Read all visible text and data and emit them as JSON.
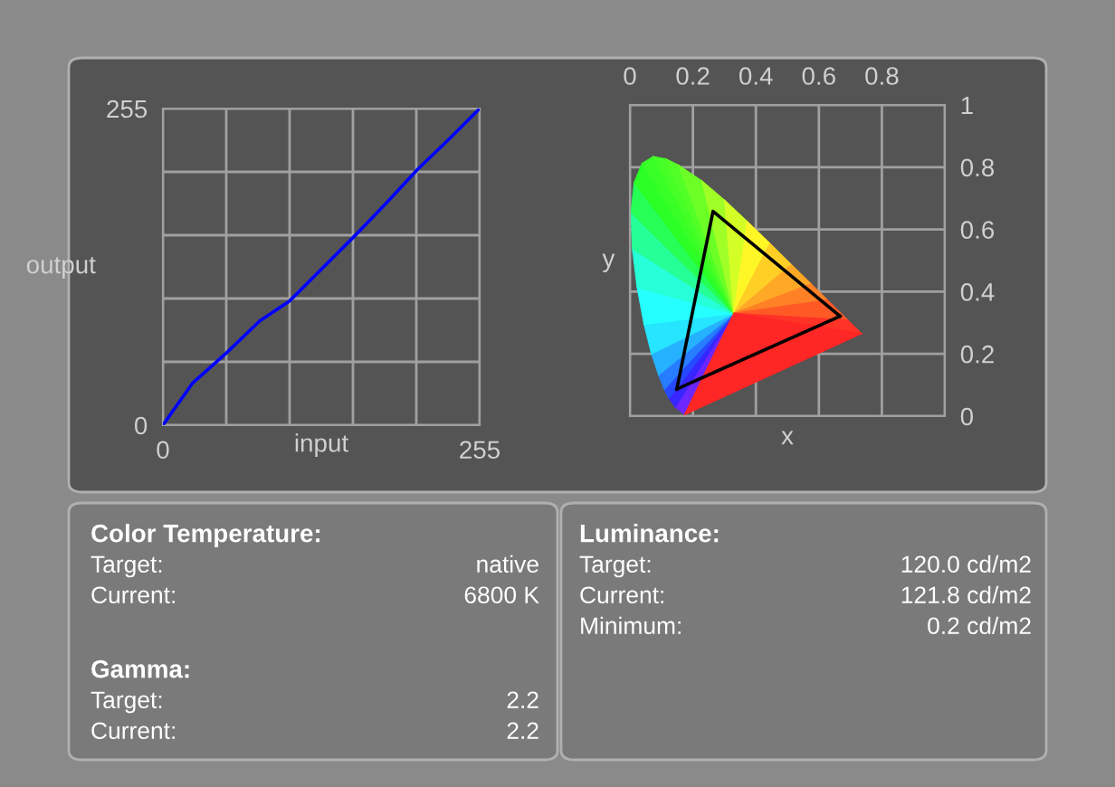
{
  "chart_data": [
    {
      "type": "line",
      "xlabel": "input",
      "ylabel": "output",
      "xlim": [
        0,
        255
      ],
      "ylim": [
        0,
        255
      ],
      "xticks": [
        0,
        {
          "value": 51,
          "label": null
        },
        {
          "value": 102,
          "label": null
        },
        {
          "value": 153,
          "label": null
        },
        {
          "value": 204,
          "label": null
        },
        255
      ],
      "yticks": [
        0,
        {
          "value": 51,
          "label": null
        },
        {
          "value": 102,
          "label": null
        },
        {
          "value": 153,
          "label": null
        },
        {
          "value": 204,
          "label": null
        },
        255
      ],
      "grid": true,
      "marker": "none",
      "line_style": "solid",
      "x": [
        0,
        24,
        51,
        78,
        102,
        128,
        154,
        180,
        205,
        230,
        255
      ],
      "series": [
        {
          "color": "#0000ff",
          "values": [
            0,
            34,
            58,
            84,
            100,
            126,
            152,
            179,
            206,
            230,
            255
          ]
        }
      ]
    },
    {
      "type": "line",
      "xlabel": "x",
      "ylabel": "y",
      "xlim": [
        0,
        1
      ],
      "ylim": [
        0,
        1
      ],
      "xticks": [
        0,
        0.2,
        0.4,
        0.6,
        0.8,
        {
          "value": 1,
          "label": null
        }
      ],
      "yticks": [
        0,
        0.2,
        0.4,
        0.6,
        0.8,
        1
      ],
      "grid": true,
      "marker": "none",
      "line_style": "solid",
      "series": [
        {
          "color": "#000000",
          "x": [
            0.149,
            0.264,
            0.667
          ],
          "values": [
            0.087,
            0.658,
            0.321
          ]
        },
        {
          "color": "#000000",
          "x": [
            0.149,
            0.667
          ],
          "values": [
            0.087,
            0.321
          ]
        }
      ]
    },
    {
      "type": "other",
      "title": "Color Temperature:",
      "annotations": [
        "Target:",
        "native",
        "Current:",
        "6800 K"
      ]
    },
    {
      "type": "other",
      "title": "Luminance:",
      "annotations": [
        "Target:",
        "120.0 cd/m2",
        "Current:",
        "121.8 cd/m2",
        "Minimum:",
        "0.2 cd/m2"
      ]
    },
    {
      "type": "other",
      "title": "Gamma:",
      "annotations": [
        "Target:",
        "2.2",
        "Current:",
        "2.2"
      ]
    }
  ]
}
